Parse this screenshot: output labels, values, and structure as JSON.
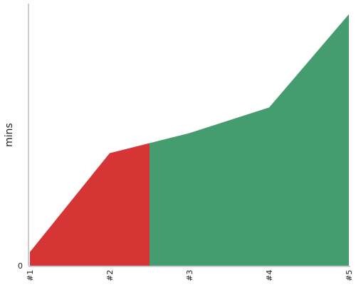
{
  "chart_data": {
    "type": "area",
    "categories": [
      "#1",
      "#2",
      "#3",
      "#4",
      "#5"
    ],
    "values": [
      1.5,
      12.3,
      14.5,
      17.3,
      27.5
    ],
    "split_at": 2.5,
    "colors": {
      "before_split": "#d63535",
      "after_split": "#459c6e",
      "axis": "#999999"
    },
    "ylabel": "mins",
    "y_tick_labels": [
      "0"
    ],
    "ylim": [
      0,
      27.5
    ],
    "grid": false,
    "legend": "none"
  }
}
